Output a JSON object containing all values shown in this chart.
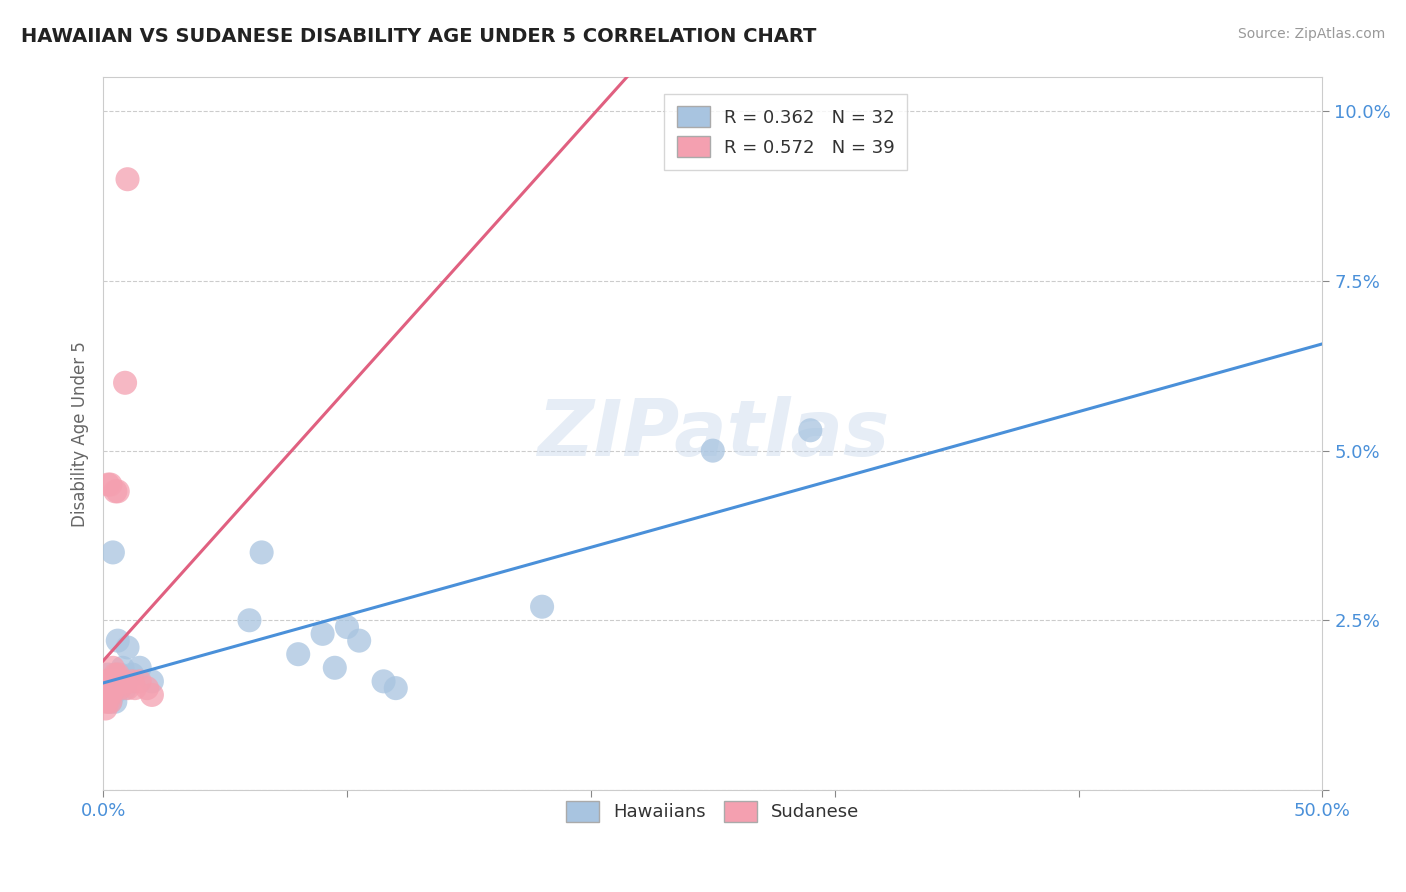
{
  "title": "HAWAIIAN VS SUDANESE DISABILITY AGE UNDER 5 CORRELATION CHART",
  "source": "Source: ZipAtlas.com",
  "ylabel": "Disability Age Under 5",
  "xlim": [
    0.0,
    0.5
  ],
  "ylim": [
    0.0,
    0.105
  ],
  "xticks": [
    0.0,
    0.1,
    0.2,
    0.3,
    0.4,
    0.5
  ],
  "xticklabels": [
    "0.0%",
    "",
    "",
    "",
    "",
    "50.0%"
  ],
  "yticks": [
    0.0,
    0.025,
    0.05,
    0.075,
    0.1
  ],
  "yticklabels": [
    "",
    "2.5%",
    "5.0%",
    "7.5%",
    "10.0%"
  ],
  "hawaiian_R": 0.362,
  "hawaiian_N": 32,
  "sudanese_R": 0.572,
  "sudanese_N": 39,
  "hawaiian_color": "#a8c4e0",
  "sudanese_color": "#f4a0b0",
  "hawaiian_line_color": "#4a90d9",
  "sudanese_line_color": "#e06080",
  "background_color": "#ffffff",
  "grid_color": "#cccccc",
  "watermark": "ZIPatlas",
  "hawaiian_x": [
    0.001,
    0.001,
    0.002,
    0.002,
    0.003,
    0.003,
    0.004,
    0.004,
    0.004,
    0.005,
    0.005,
    0.006,
    0.006,
    0.007,
    0.008,
    0.009,
    0.01,
    0.012,
    0.015,
    0.02,
    0.06,
    0.065,
    0.08,
    0.09,
    0.095,
    0.1,
    0.105,
    0.115,
    0.12,
    0.18,
    0.25,
    0.29
  ],
  "hawaiian_y": [
    0.014,
    0.016,
    0.015,
    0.017,
    0.013,
    0.016,
    0.014,
    0.016,
    0.035,
    0.013,
    0.015,
    0.016,
    0.022,
    0.017,
    0.018,
    0.015,
    0.021,
    0.017,
    0.018,
    0.016,
    0.025,
    0.035,
    0.02,
    0.023,
    0.018,
    0.024,
    0.022,
    0.016,
    0.015,
    0.027,
    0.05,
    0.053
  ],
  "sudanese_x": [
    0.001,
    0.001,
    0.001,
    0.001,
    0.001,
    0.001,
    0.002,
    0.002,
    0.002,
    0.002,
    0.002,
    0.002,
    0.003,
    0.003,
    0.003,
    0.003,
    0.003,
    0.003,
    0.004,
    0.004,
    0.004,
    0.005,
    0.005,
    0.005,
    0.005,
    0.006,
    0.006,
    0.006,
    0.007,
    0.007,
    0.008,
    0.009,
    0.01,
    0.01,
    0.012,
    0.013,
    0.015,
    0.018,
    0.02
  ],
  "sudanese_y": [
    0.014,
    0.013,
    0.012,
    0.016,
    0.015,
    0.014,
    0.016,
    0.015,
    0.014,
    0.013,
    0.045,
    0.016,
    0.016,
    0.015,
    0.014,
    0.013,
    0.045,
    0.016,
    0.018,
    0.016,
    0.015,
    0.044,
    0.017,
    0.016,
    0.015,
    0.017,
    0.016,
    0.044,
    0.016,
    0.015,
    0.016,
    0.06,
    0.09,
    0.015,
    0.016,
    0.015,
    0.016,
    0.015,
    0.014
  ]
}
